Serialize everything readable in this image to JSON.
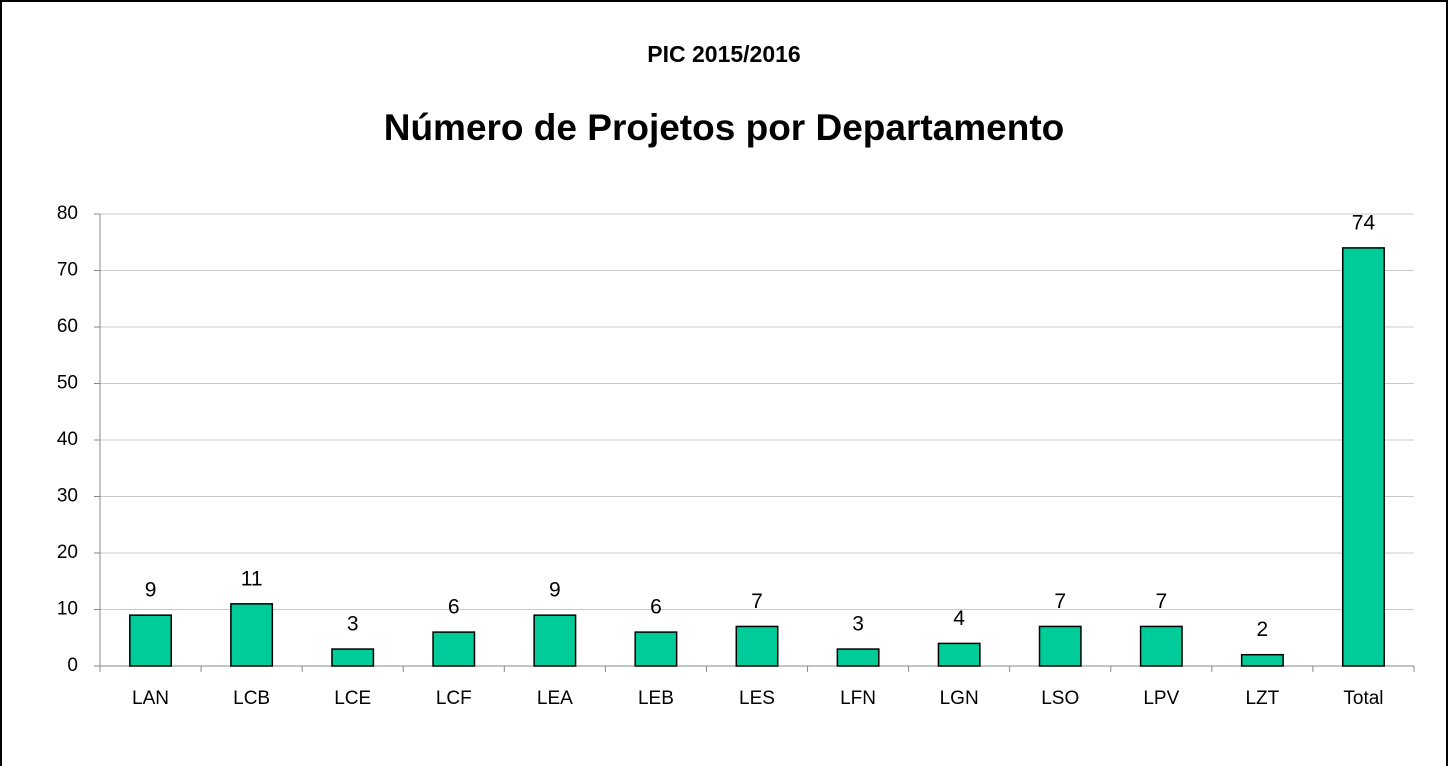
{
  "chart_data": {
    "type": "bar",
    "subtitle": "PIC 2015/2016",
    "title": "Número de Projetos por Departamento",
    "categories": [
      "LAN",
      "LCB",
      "LCE",
      "LCF",
      "LEA",
      "LEB",
      "LES",
      "LFN",
      "LGN",
      "LSO",
      "LPV",
      "LZT",
      "Total"
    ],
    "values": [
      9,
      11,
      3,
      6,
      9,
      6,
      7,
      3,
      4,
      7,
      7,
      2,
      74
    ],
    "color": "#00cc99",
    "ylim": [
      0,
      80
    ],
    "yticks": [
      0,
      10,
      20,
      30,
      40,
      50,
      60,
      70,
      80
    ],
    "grid": true
  }
}
